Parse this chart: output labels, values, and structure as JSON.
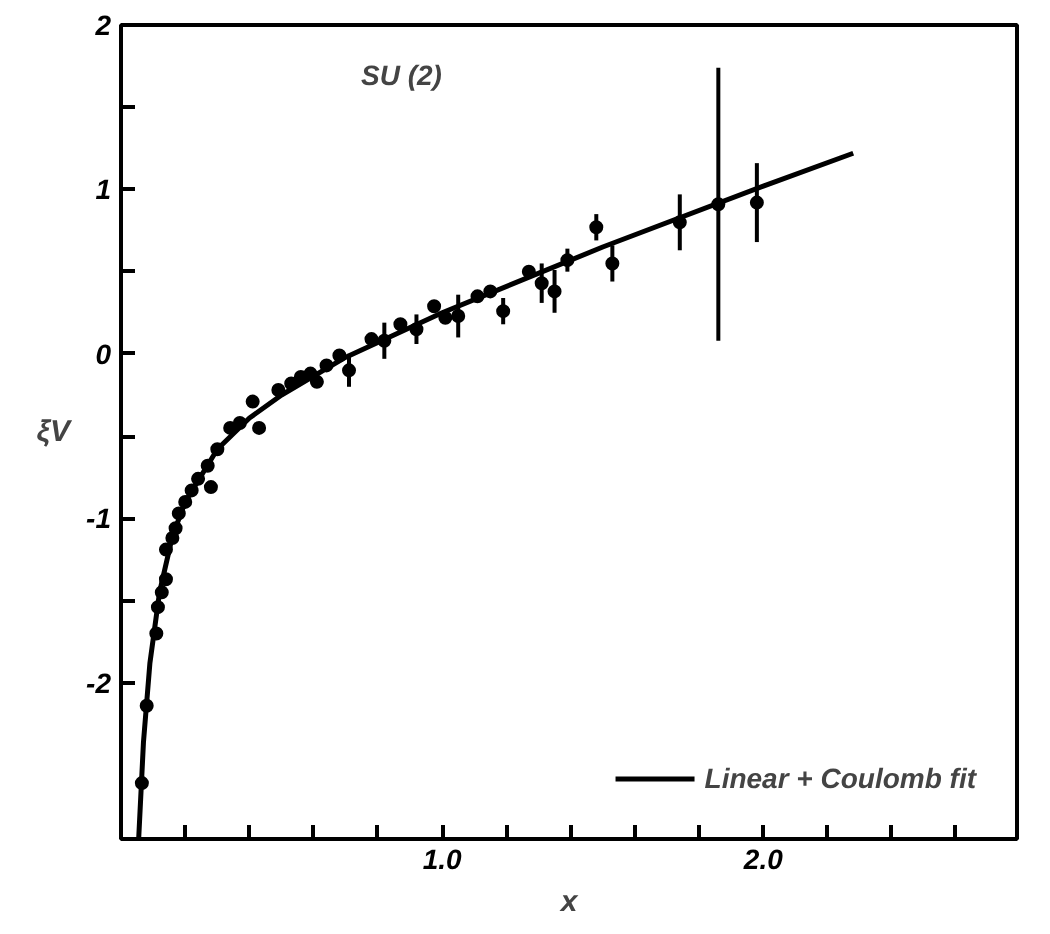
{
  "chart_data": {
    "type": "scatter",
    "xlabel": "x",
    "ylabel": "ξV",
    "annotations": [
      "SU (2)"
    ],
    "xlim": [
      0,
      2.79
    ],
    "ylim": [
      -2.95,
      2
    ],
    "xticks": [
      {
        "value": 0.2,
        "label": null
      },
      {
        "value": 0.4,
        "label": null
      },
      {
        "value": 0.6,
        "label": null
      },
      {
        "value": 0.8,
        "label": null
      },
      {
        "value": 1.0,
        "label": "1.0"
      },
      {
        "value": 1.2,
        "label": null
      },
      {
        "value": 1.4,
        "label": null
      },
      {
        "value": 1.6,
        "label": null
      },
      {
        "value": 1.8,
        "label": null
      },
      {
        "value": 2.0,
        "label": "2.0"
      },
      {
        "value": 2.2,
        "label": null
      },
      {
        "value": 2.4,
        "label": null
      },
      {
        "value": 2.6,
        "label": null
      }
    ],
    "yticks": [
      -2,
      {
        "value": -1.5,
        "label": null
      },
      -1,
      {
        "value": -0.5,
        "label": null
      },
      0,
      {
        "value": 0.5,
        "label": null
      },
      1,
      {
        "value": 1.5,
        "label": null
      },
      2
    ],
    "grid": false,
    "legend": "bottom right",
    "series": [
      {
        "color": "#000000",
        "marker": "circle",
        "x": [
          0.065,
          0.08,
          0.11,
          0.115,
          0.127,
          0.14,
          0.14,
          0.16,
          0.17,
          0.18,
          0.2,
          0.22,
          0.24,
          0.27,
          0.28,
          0.3,
          0.34,
          0.37,
          0.41,
          0.43,
          0.49,
          0.53,
          0.56,
          0.59,
          0.61,
          0.64,
          0.68,
          0.71,
          0.78,
          0.82,
          0.87,
          0.92,
          0.975,
          1.01,
          1.05,
          1.11,
          1.15,
          1.19,
          1.27,
          1.31,
          1.35,
          1.39,
          1.48,
          1.53,
          1.74,
          1.86,
          1.98
        ],
        "values": [
          -2.61,
          -2.14,
          -1.7,
          -1.54,
          -1.45,
          -1.37,
          -1.19,
          -1.12,
          -1.06,
          -0.97,
          -0.9,
          -0.83,
          -0.76,
          -0.68,
          -0.81,
          -0.58,
          -0.45,
          -0.42,
          -0.29,
          -0.45,
          -0.22,
          -0.18,
          -0.14,
          -0.12,
          -0.17,
          -0.07,
          -0.01,
          -0.1,
          0.09,
          0.08,
          0.18,
          0.15,
          0.29,
          0.22,
          0.23,
          0.35,
          0.38,
          0.26,
          0.5,
          0.43,
          0.38,
          0.57,
          0.77,
          0.55,
          0.8,
          0.91,
          0.92
        ],
        "errors": [
          null,
          null,
          null,
          null,
          null,
          null,
          null,
          null,
          null,
          null,
          null,
          null,
          null,
          null,
          null,
          null,
          null,
          null,
          null,
          null,
          null,
          null,
          null,
          null,
          null,
          null,
          null,
          0.1,
          null,
          0.11,
          null,
          0.09,
          null,
          null,
          0.13,
          null,
          null,
          0.08,
          null,
          0.12,
          0.13,
          0.07,
          0.08,
          0.11,
          0.17,
          0.83,
          0.24
        ]
      },
      {
        "type": "line",
        "name": "Linear + Coulomb fit",
        "color": "#000000",
        "line_style": "solid",
        "x": [
          0.055,
          0.07,
          0.09,
          0.12,
          0.16,
          0.2,
          0.3,
          0.4,
          0.5,
          0.7,
          1.0,
          1.5,
          2.0,
          2.28
        ],
        "values": [
          -2.95,
          -2.36,
          -1.88,
          -1.45,
          -1.11,
          -0.9,
          -0.58,
          -0.39,
          -0.25,
          -0.02,
          0.25,
          0.65,
          1.02,
          1.22
        ]
      }
    ]
  }
}
